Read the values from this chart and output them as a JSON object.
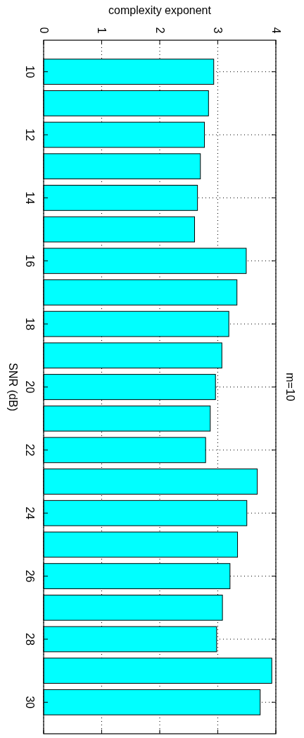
{
  "chart_data": {
    "type": "bar",
    "orientation": "horizontal",
    "title": "m=10",
    "xlabel": "complexity exponent",
    "ylabel": "SNR (dB)",
    "categories": [
      "10",
      null,
      "12",
      null,
      "14",
      null,
      "16",
      null,
      "18",
      null,
      "20",
      null,
      "22",
      null,
      "24",
      null,
      "26",
      null,
      "28",
      null,
      "30"
    ],
    "values": [
      2.93,
      2.84,
      2.77,
      2.7,
      2.65,
      2.6,
      3.49,
      3.33,
      3.19,
      3.07,
      2.96,
      2.87,
      2.79,
      3.68,
      3.5,
      3.34,
      3.21,
      3.08,
      2.98,
      3.93,
      3.73
    ],
    "color": "#00ffff",
    "xlim": [
      0,
      4
    ],
    "xticks": [
      0,
      1,
      2,
      3,
      4
    ],
    "grid": true
  }
}
